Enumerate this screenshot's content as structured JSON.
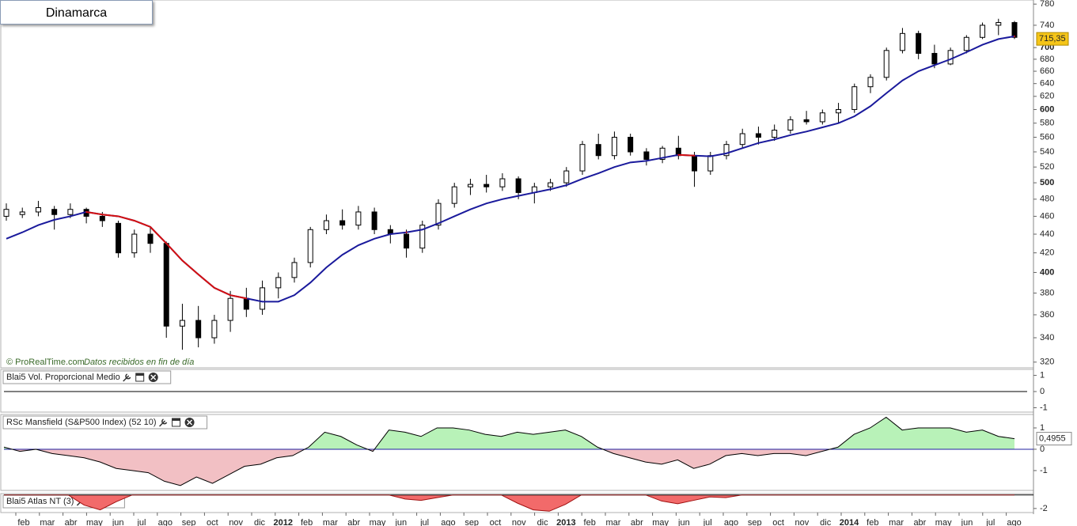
{
  "header": {
    "title": "Dinamarca"
  },
  "chart_data": [
    {
      "type": "candlestick",
      "source": "© ProRealTime.com",
      "source_note": "Datos recibidos en fin de día",
      "open": [
        460,
        462,
        465,
        468,
        462,
        468,
        460,
        452,
        420,
        440,
        430,
        350,
        355,
        340,
        355,
        375,
        365,
        385,
        395,
        410,
        445,
        455,
        450,
        465,
        445,
        440,
        425,
        450,
        475,
        495,
        498,
        495,
        505,
        488,
        495,
        500,
        515,
        550,
        535,
        560,
        540,
        530,
        545,
        535,
        515,
        535,
        550,
        565,
        560,
        570,
        585,
        582,
        595,
        600,
        635,
        650,
        695,
        725,
        690,
        672,
        695,
        718,
        740,
        745
      ],
      "high": [
        475,
        470,
        478,
        472,
        475,
        470,
        465,
        455,
        445,
        448,
        432,
        370,
        368,
        360,
        382,
        385,
        392,
        400,
        415,
        448,
        462,
        468,
        472,
        470,
        450,
        445,
        455,
        480,
        500,
        505,
        510,
        512,
        508,
        500,
        505,
        520,
        555,
        565,
        568,
        565,
        545,
        548,
        562,
        540,
        540,
        555,
        572,
        575,
        578,
        590,
        598,
        600,
        610,
        640,
        655,
        700,
        735,
        730,
        705,
        700,
        722,
        745,
        752,
        748
      ],
      "low": [
        455,
        458,
        460,
        445,
        458,
        452,
        448,
        415,
        415,
        420,
        340,
        330,
        332,
        335,
        345,
        358,
        360,
        375,
        390,
        405,
        440,
        445,
        445,
        440,
        430,
        415,
        420,
        445,
        470,
        485,
        488,
        490,
        480,
        475,
        490,
        495,
        510,
        530,
        530,
        535,
        522,
        525,
        530,
        495,
        510,
        530,
        545,
        550,
        555,
        565,
        578,
        578,
        580,
        595,
        625,
        645,
        690,
        680,
        665,
        670,
        690,
        715,
        722,
        715
      ],
      "close": [
        468,
        465,
        470,
        462,
        468,
        460,
        455,
        420,
        440,
        430,
        350,
        355,
        340,
        355,
        375,
        365,
        385,
        395,
        410,
        445,
        455,
        450,
        465,
        445,
        440,
        425,
        450,
        475,
        495,
        498,
        495,
        505,
        488,
        495,
        500,
        515,
        550,
        535,
        560,
        540,
        530,
        545,
        535,
        515,
        535,
        550,
        565,
        560,
        570,
        585,
        582,
        595,
        600,
        635,
        650,
        695,
        725,
        690,
        672,
        695,
        718,
        740,
        745,
        718
      ],
      "up_color": "#ffffff",
      "down_color": "#000000",
      "ma": {
        "values": [
          435,
          442,
          450,
          456,
          460,
          465,
          462,
          460,
          455,
          448,
          430,
          412,
          398,
          385,
          378,
          375,
          372,
          372,
          378,
          390,
          405,
          418,
          428,
          435,
          440,
          442,
          445,
          452,
          460,
          468,
          475,
          480,
          484,
          488,
          492,
          497,
          505,
          512,
          520,
          526,
          528,
          532,
          536,
          535,
          534,
          538,
          545,
          552,
          557,
          563,
          568,
          574,
          580,
          590,
          605,
          625,
          645,
          660,
          670,
          680,
          692,
          705,
          715,
          720
        ],
        "color": "#1a1a9c",
        "color_above_price": "#d41010"
      },
      "last_price": {
        "value": 715.35,
        "label": "715,35"
      },
      "log_scale": true,
      "ylim": [
        315.5,
        788
      ],
      "yticks": [
        320,
        340,
        360,
        380,
        400,
        420,
        440,
        460,
        480,
        500,
        520,
        540,
        560,
        580,
        600,
        620,
        640,
        660,
        680,
        700,
        740,
        780
      ]
    },
    {
      "type": "line",
      "title": "Blai5 Vol. Proporcional Medio",
      "values": [
        0,
        0
      ],
      "color": "#000000",
      "ylim": [
        -1.27,
        1.37
      ],
      "yticks": [
        1,
        0,
        -1
      ]
    },
    {
      "type": "area",
      "title": "RSc Mansfield (S&P500 Index) (52 10)",
      "values": [
        0.1,
        -0.1,
        0.0,
        -0.2,
        -0.3,
        -0.4,
        -0.6,
        -0.9,
        -1.0,
        -1.1,
        -1.5,
        -1.7,
        -1.3,
        -1.6,
        -1.2,
        -0.8,
        -0.7,
        -0.4,
        -0.3,
        0.1,
        0.8,
        0.6,
        0.2,
        -0.1,
        0.9,
        0.8,
        0.6,
        1.0,
        1.0,
        0.9,
        0.7,
        0.6,
        0.8,
        0.7,
        0.8,
        0.9,
        0.6,
        0.1,
        -0.2,
        -0.4,
        -0.6,
        -0.7,
        -0.5,
        -0.9,
        -0.7,
        -0.3,
        -0.2,
        -0.3,
        -0.2,
        -0.2,
        -0.3,
        -0.1,
        0.1,
        0.7,
        1.0,
        1.5,
        0.9,
        1.0,
        1.0,
        1.0,
        0.8,
        0.9,
        0.6,
        0.4955
      ],
      "last_value": {
        "value": 0.4955,
        "label": "0,4955"
      },
      "positive_color": "#b8f2b8",
      "negative_color": "#f2c0c4",
      "line_color": "#000000",
      "zero_color": "#2020a0",
      "ylim": [
        -1.93,
        1.63
      ],
      "yticks": [
        1,
        0,
        -1
      ]
    },
    {
      "type": "area",
      "title": "Blai5 Atlas NT (3)",
      "values": [
        0,
        0,
        0,
        0,
        0,
        -1.5,
        -2.2,
        -1.0,
        0,
        0,
        0,
        0,
        0,
        0,
        0,
        0,
        0,
        0,
        0,
        0,
        0,
        0,
        0,
        0,
        0,
        -0.6,
        -0.8,
        -0.4,
        0,
        0,
        0,
        0,
        -1.2,
        -2.2,
        -2.4,
        -1.4,
        0,
        0,
        0,
        0,
        0,
        -0.9,
        -1.3,
        -0.8,
        -0.3,
        -0.4,
        0,
        0,
        0,
        0,
        0,
        0,
        0,
        0,
        0,
        0,
        0,
        0,
        0,
        0,
        0,
        0,
        0,
        0
      ],
      "positive_color": "#f26a6a",
      "negative_color": "#f26a6a",
      "line_color": "#a01010",
      "zero_color": "#000000",
      "ylim": [
        -2.6,
        0.2
      ],
      "yticks": [
        -2
      ],
      "x_axis_labels": [
        "feb",
        "mar",
        "abr",
        "may",
        "jun",
        "jul",
        "ago",
        "sep",
        "oct",
        "nov",
        "dic",
        "2012",
        "feb",
        "mar",
        "abr",
        "may",
        "jun",
        "jul",
        "ago",
        "sep",
        "oct",
        "nov",
        "dic",
        "2013",
        "feb",
        "mar",
        "abr",
        "may",
        "jun",
        "jul",
        "ago",
        "sep",
        "oct",
        "nov",
        "dic",
        "2014",
        "feb",
        "mar",
        "abr",
        "may",
        "jun",
        "jul",
        "ago"
      ]
    }
  ]
}
